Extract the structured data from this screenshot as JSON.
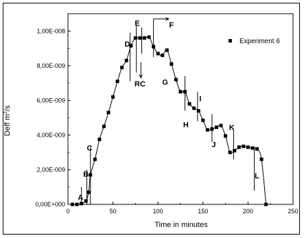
{
  "chart_data": {
    "type": "scatter",
    "xlabel": "Time in minutes",
    "ylabel_main": "Deff m",
    "ylabel_sup": "2",
    "ylabel_tail": "/s",
    "xlim": [
      0,
      250
    ],
    "ylim": [
      0,
      1.1e-08
    ],
    "xticks": [
      0,
      50,
      100,
      150,
      200,
      250
    ],
    "yticks": [
      {
        "value": 0,
        "label": "0,00E+000"
      },
      {
        "value": 2e-09,
        "label": "2,00E-009"
      },
      {
        "value": 4e-09,
        "label": "4,00E-009"
      },
      {
        "value": 6e-09,
        "label": "6,00E-009"
      },
      {
        "value": 8e-09,
        "label": "8,00E-009"
      },
      {
        "value": 1e-08,
        "label": "1,00E-008"
      }
    ],
    "grid": false,
    "legend_position": "top-right",
    "series": [
      {
        "name": "Experiment 6",
        "marker": "square",
        "color": "#000000",
        "x": [
          5,
          10,
          15,
          20,
          23,
          25,
          30,
          35,
          40,
          45,
          50,
          55,
          60,
          65,
          70,
          75,
          80,
          85,
          90,
          95,
          100,
          105,
          110,
          115,
          120,
          125,
          130,
          135,
          140,
          145,
          150,
          155,
          160,
          165,
          170,
          175,
          180,
          185,
          190,
          195,
          200,
          205,
          210,
          215,
          220
        ],
        "y": [
          0,
          0,
          5e-11,
          2e-10,
          7e-10,
          1.7e-09,
          2.6e-09,
          3.75e-09,
          4.5e-09,
          5.3e-09,
          6.2e-09,
          7.1e-09,
          7.9e-09,
          8.3e-09,
          9.15e-09,
          9.6e-09,
          9.6e-09,
          9.6e-09,
          9.65e-09,
          9.1e-09,
          8.7e-09,
          8.6e-09,
          8.9e-09,
          8.1e-09,
          7.2e-09,
          6.5e-09,
          6.5e-09,
          5.8e-09,
          5.55e-09,
          5.4e-09,
          4.85e-09,
          4.3e-09,
          4.35e-09,
          4.45e-09,
          4.55e-09,
          3.95e-09,
          3e-09,
          3.1e-09,
          3.3e-09,
          3.35e-09,
          3.3e-09,
          3.25e-09,
          3.2e-09,
          2.6e-09,
          0
        ]
      }
    ],
    "annotations": [
      {
        "text": "A",
        "x": 14,
        "y": 2.5e-10
      },
      {
        "text": "B",
        "x": 20,
        "y": 1.6e-09
      },
      {
        "text": "C",
        "x": 24,
        "y": 3.1e-09
      },
      {
        "text": "D",
        "x": 66,
        "y": 9.1e-09
      },
      {
        "text": "E",
        "x": 77,
        "y": 1.03e-08
      },
      {
        "text": "F",
        "x": 115,
        "y": 1.02e-08
      },
      {
        "text": "RC",
        "x": 80,
        "y": 6.8e-09
      },
      {
        "text": "G",
        "x": 108,
        "y": 6.9e-09
      },
      {
        "text": "H",
        "x": 131,
        "y": 4.45e-09
      },
      {
        "text": "I",
        "x": 147,
        "y": 5.95e-09
      },
      {
        "text": "J",
        "x": 162,
        "y": 3.3e-09
      },
      {
        "text": "K",
        "x": 182,
        "y": 4.3e-09
      },
      {
        "text": "L",
        "x": 210,
        "y": 1.5e-09
      }
    ],
    "annotation_lines": [
      {
        "x": 15,
        "y0": 0,
        "y1": 1e-09
      },
      {
        "x": 21,
        "y0": 0,
        "y1": 2e-09
      },
      {
        "x": 25,
        "y0": 0,
        "y1": 3.3e-09
      },
      {
        "x": 69,
        "y0": 7.1e-09,
        "y1": 9.9e-09
      },
      {
        "x": 76,
        "y0": 7.6e-09,
        "y1": 1.03e-08
      },
      {
        "x": 82,
        "y0": 8.7e-09,
        "y1": 1.02e-08
      },
      {
        "x": 95,
        "y0": 8.5e-09,
        "y1": 1.02e-08
      },
      {
        "x": 130,
        "y0": 5.4e-09,
        "y1": 7.4e-09
      },
      {
        "x": 144,
        "y0": 4.8e-09,
        "y1": 6.5e-09
      },
      {
        "x": 160,
        "y0": 3.6e-09,
        "y1": 5.2e-09
      },
      {
        "x": 184,
        "y0": 2.6e-09,
        "y1": 4.3e-09
      },
      {
        "x": 207,
        "y0": 8e-10,
        "y1": 3.3e-09
      }
    ],
    "arrows": [
      {
        "x0": 95,
        "y0": 1.02e-08,
        "x1": 95,
        "y1": 1.07e-08
      },
      {
        "x0": 95,
        "y0": 1.07e-08,
        "x1": 112,
        "y1": 1.07e-08
      },
      {
        "x0": 81,
        "y0": 8.2e-09,
        "x1": 81,
        "y1": 7.3e-09
      }
    ]
  }
}
